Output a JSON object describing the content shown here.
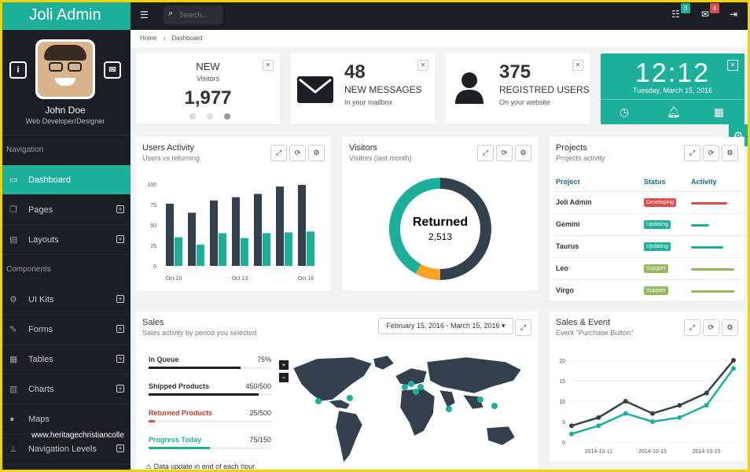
{
  "app": {
    "title": "Joli Admin"
  },
  "profile": {
    "name": "John Doe",
    "role": "Web Developer/Designer"
  },
  "nav": {
    "section_navigation": "Navigation",
    "section_components": "Components",
    "items": [
      {
        "label": "Dashboard",
        "active": true
      },
      {
        "label": "Pages"
      },
      {
        "label": "Layouts"
      },
      {
        "label": "UI Kits"
      },
      {
        "label": "Forms"
      },
      {
        "label": "Tables"
      },
      {
        "label": "Charts"
      },
      {
        "label": "Maps"
      },
      {
        "label": "Navigation Levels"
      }
    ]
  },
  "topbar": {
    "search_placeholder": "Search...",
    "tasks_count": "3",
    "messages_count": "4"
  },
  "breadcrumb": {
    "home": "Home",
    "current": "Dashboard"
  },
  "widgets": {
    "visitors": {
      "title": "NEW",
      "subtitle": "Visitors",
      "value": "1,977"
    },
    "messages": {
      "value": "48",
      "label": "NEW MESSAGES",
      "sub": "In your mailbox"
    },
    "users": {
      "value": "375",
      "label": "REGISTRED USERS",
      "sub": "On your website"
    },
    "clock": {
      "time": "12:12",
      "date": "Tuesday, March 15, 2016"
    }
  },
  "users_activity": {
    "title": "Users Activity",
    "subtitle": "Users vs returning",
    "chart_data": {
      "type": "bar",
      "categories": [
        "Oct 10",
        "",
        "",
        "Oct 13",
        "",
        "",
        "Oct 16"
      ],
      "series": [
        {
          "values": [
            76,
            65,
            80,
            84,
            88,
            97,
            99
          ]
        },
        {
          "values": [
            35,
            26,
            40,
            34,
            40,
            41,
            42
          ]
        }
      ],
      "yticks": [
        "0",
        "25",
        "50",
        "75",
        "100"
      ],
      "xtick_labels": [
        "Oct 10",
        "Oct 13",
        "Oct 16"
      ],
      "ylim": [
        0,
        100
      ],
      "colors": [
        "#33414e",
        "#1caf9a"
      ]
    }
  },
  "visitors_panel": {
    "title": "Visitors",
    "subtitle": "Visitors (last month)",
    "chart_data": {
      "type": "pie",
      "center_label": "Returned",
      "center_value": "2,513",
      "slices": [
        {
          "value": 50,
          "color": "#33414e"
        },
        {
          "value": 8,
          "color": "#fea223"
        },
        {
          "value": 42,
          "color": "#1caf9a"
        }
      ]
    }
  },
  "projects": {
    "title": "Projects",
    "subtitle": "Projects activity",
    "columns": [
      "Project",
      "Status",
      "Activity"
    ],
    "rows": [
      {
        "name": "Joli Admin",
        "status": "Developing",
        "status_color": "#e04b4a",
        "activity": 0.8,
        "activity_color": "#e04b4a"
      },
      {
        "name": "Gemini",
        "status": "Updating",
        "status_color": "#1caf9a",
        "activity": 0.4,
        "activity_color": "#1caf9a"
      },
      {
        "name": "Taurus",
        "status": "Updating",
        "status_color": "#1caf9a",
        "activity": 0.7,
        "activity_color": "#1caf9a"
      },
      {
        "name": "Leo",
        "status": "Support",
        "status_color": "#95b75d",
        "activity": 0.95,
        "activity_color": "#95b75d"
      },
      {
        "name": "Virgo",
        "status": "Support",
        "status_color": "#95b75d",
        "activity": 0.95,
        "activity_color": "#95b75d"
      }
    ]
  },
  "sales": {
    "title": "Sales",
    "subtitle": "Sales activity by period you selected",
    "daterange": "February 15, 2016 - March 15, 2016",
    "rows": [
      {
        "label": "In Queue",
        "value": "75%",
        "fraction": 0.75,
        "color": "#1b1e24"
      },
      {
        "label": "Shipped Products",
        "value": "450/500",
        "fraction": 0.9,
        "color": "#1b1e24"
      },
      {
        "label": "Returned Products",
        "value": "25/500",
        "fraction": 0.05,
        "color": "#e04b4a",
        "label_color": "#c0392b"
      },
      {
        "label": "Progress Today",
        "value": "75/150",
        "fraction": 0.5,
        "color": "#1caf9a",
        "label_color": "#1caf9a"
      }
    ],
    "footnote": "Data update in end of each hour."
  },
  "sales_event": {
    "title": "Sales & Event",
    "subtitle": "Event \"Purchase Button\"",
    "chart_data": {
      "type": "line",
      "x": [
        "2014-10-10",
        "2014-10-11",
        "2014-10-12",
        "2014-10-13",
        "2014-10-14",
        "2014-10-15",
        "2014-10-16"
      ],
      "xtick_labels": [
        "2014-10-11",
        "2014-10-13",
        "2014-10-15"
      ],
      "yticks": [
        "0",
        "5",
        "10",
        "15",
        "20"
      ],
      "ylim": [
        0,
        20
      ],
      "series": [
        {
          "values": [
            4,
            6,
            10,
            7,
            9,
            12,
            20
          ],
          "color": "#33414e"
        },
        {
          "values": [
            2,
            4,
            7,
            5,
            6,
            9,
            18
          ],
          "color": "#1caf9a"
        }
      ]
    }
  },
  "watermark": "www.heritagechristiancolle"
}
